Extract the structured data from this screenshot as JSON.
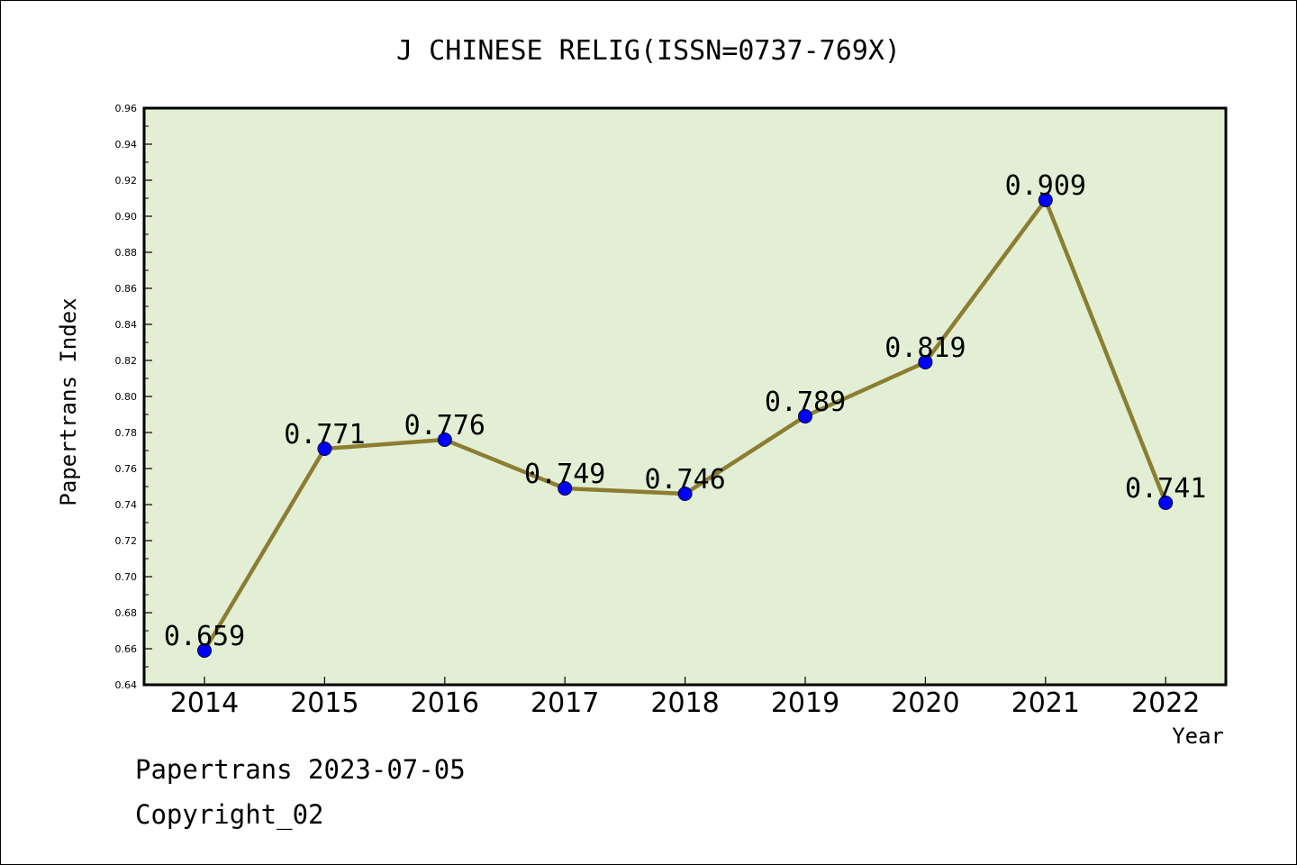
{
  "chart_data": {
    "type": "line",
    "title": "J CHINESE RELIG(ISSN=0737-769X)",
    "xlabel": "Year",
    "ylabel": "Papertrans Index",
    "categories": [
      "2014",
      "2015",
      "2016",
      "2017",
      "2018",
      "2019",
      "2020",
      "2021",
      "2022"
    ],
    "series": [
      {
        "values": [
          0.659,
          0.771,
          0.776,
          0.749,
          0.746,
          0.789,
          0.819,
          0.909,
          0.741
        ],
        "labels": [
          "0.659",
          "0.771",
          "0.776",
          "0.749",
          "0.746",
          "0.789",
          "0.819",
          "0.909",
          "0.741"
        ],
        "line_color": "#8b7d32",
        "marker_color": "#0000ff"
      }
    ],
    "ylim": [
      0.64,
      0.96
    ],
    "yticks": [
      "0.64",
      "0.66",
      "0.68",
      "0.70",
      "0.72",
      "0.74",
      "0.76",
      "0.78",
      "0.80",
      "0.82",
      "0.84",
      "0.86",
      "0.88",
      "0.90",
      "0.92",
      "0.94",
      "0.96"
    ],
    "grid": false,
    "legend": "none",
    "plot_background": "#e2efd4"
  },
  "footer": {
    "date_line": "Papertrans 2023-07-05",
    "copyright": "Copyright_02"
  }
}
